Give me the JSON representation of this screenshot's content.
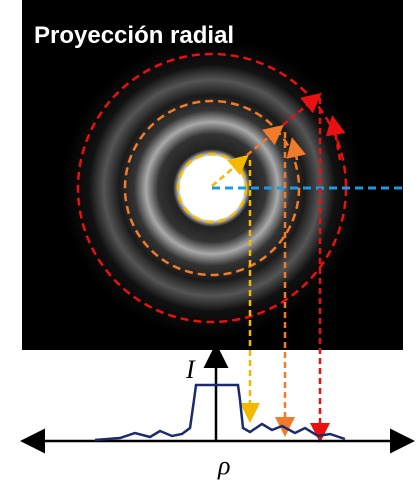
{
  "title": "Proyección radial",
  "y_axis_label": "I",
  "x_axis_label": "ρ"
}
